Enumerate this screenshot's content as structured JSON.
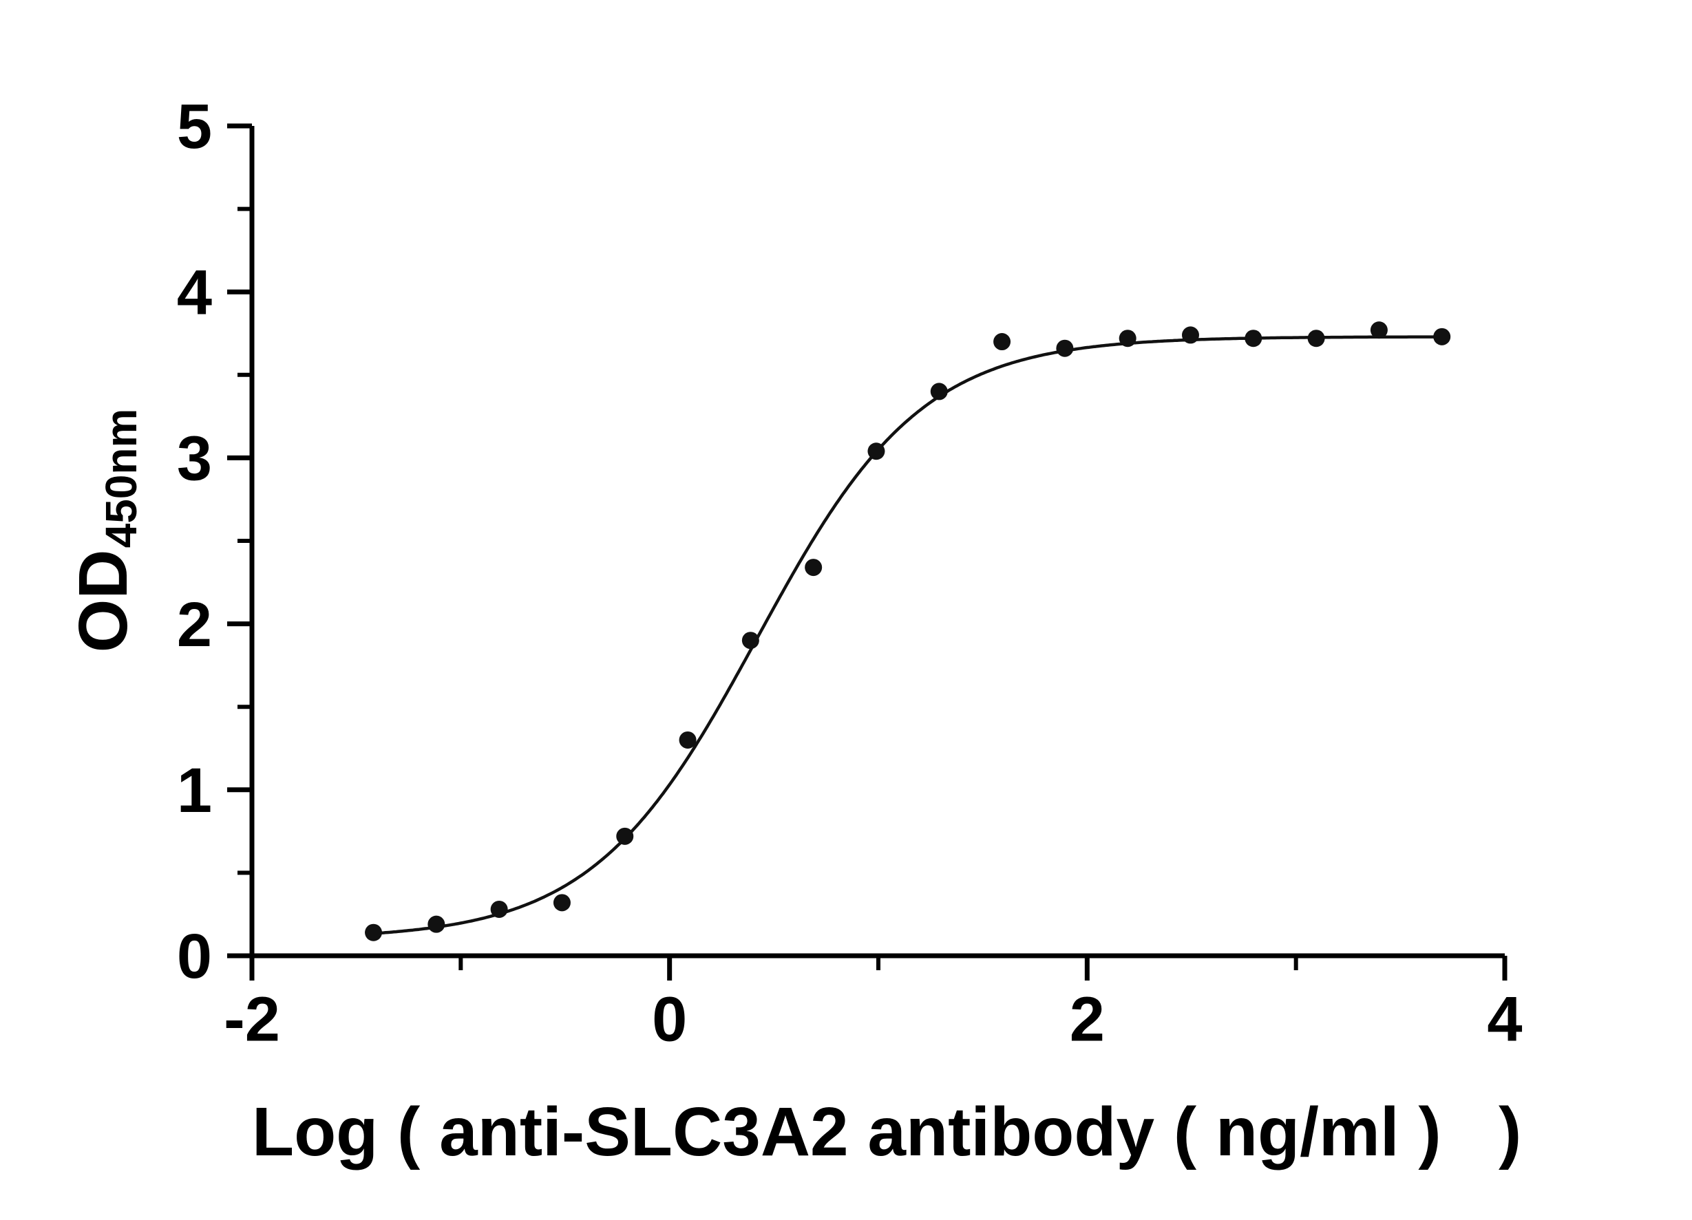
{
  "chart_data": {
    "type": "scatter",
    "title": "",
    "xlabel": "Log ( anti-SLC3A2 antibody ( ng/ml )   )",
    "ylabel_main": "OD",
    "ylabel_sub": "450nm",
    "xlim": [
      -2,
      4
    ],
    "ylim": [
      0,
      5
    ],
    "x_ticks_major": [
      -2,
      0,
      2,
      4
    ],
    "x_ticks_minor": [
      -1,
      1,
      3
    ],
    "y_ticks_major": [
      0,
      1,
      2,
      3,
      4,
      5
    ],
    "y_ticks_minor": [
      0.5,
      1.5,
      2.5,
      3.5,
      4.5
    ],
    "grid": false,
    "legend": false,
    "points": {
      "x": [
        -1.418,
        -1.117,
        -0.816,
        -0.515,
        -0.214,
        0.087,
        0.388,
        0.689,
        0.99,
        1.291,
        1.592,
        1.893,
        2.194,
        2.495,
        2.796,
        3.097,
        3.398,
        3.699
      ],
      "y": [
        0.14,
        0.19,
        0.28,
        0.32,
        0.72,
        1.3,
        1.9,
        2.34,
        3.04,
        3.4,
        3.7,
        3.66,
        3.72,
        3.74,
        3.72,
        3.72,
        3.77,
        3.73
      ]
    },
    "fit_curve": {
      "model": "4PL-logistic",
      "bottom": 0.1,
      "top": 3.73,
      "logEC50": 0.42,
      "hillslope": 1.1,
      "x_start": -1.45,
      "x_end": 3.72
    },
    "colors": {
      "axis": "#000000",
      "point": "#111111",
      "curve": "#111111",
      "background": "#ffffff"
    }
  }
}
